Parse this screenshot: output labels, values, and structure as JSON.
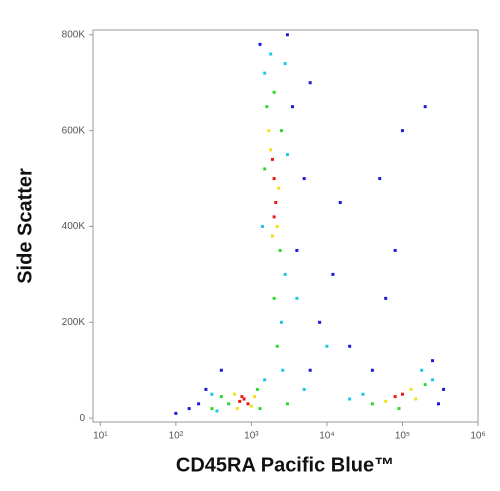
{
  "chart_data": {
    "type": "scatter",
    "x_label": "CD45RA Pacific Blue™",
    "y_label": "Side Scatter",
    "xscale": "log",
    "xlim": [
      8,
      1000000
    ],
    "ylim": [
      -8000,
      810000
    ],
    "xticks": [
      {
        "value": 10,
        "label": "10¹"
      },
      {
        "value": 100,
        "label": "10²"
      },
      {
        "value": 1000,
        "label": "10³"
      },
      {
        "value": 10000,
        "label": "10⁴"
      },
      {
        "value": 100000,
        "label": "10⁵"
      },
      {
        "value": 1000000,
        "label": "10⁶"
      }
    ],
    "yticks": [
      0,
      {
        "value": 200000,
        "label": "200K"
      },
      {
        "value": 400000,
        "label": "400K"
      },
      {
        "value": 600000,
        "label": "600K"
      },
      {
        "value": 800000,
        "label": "800K"
      }
    ],
    "series": [
      {
        "color": "#1a1adc",
        "x": [
          200,
          250,
          150,
          4000,
          5000,
          8000,
          12000,
          20000,
          60000,
          100000,
          200000,
          250000,
          40000,
          1300,
          3000,
          6000,
          15000,
          300000,
          350000,
          100,
          3500,
          50000,
          80000,
          400,
          6000
        ],
        "values": [
          30000,
          60000,
          20000,
          350000,
          500000,
          200000,
          300000,
          150000,
          250000,
          600000,
          650000,
          120000,
          100000,
          780000,
          800000,
          100000,
          450000,
          30000,
          60000,
          10000,
          650000,
          500000,
          350000,
          100000,
          700000
        ]
      },
      {
        "color": "#18c8e8",
        "x": [
          300,
          1500,
          350,
          2500,
          1500,
          2800,
          3000,
          1400,
          2600,
          5000,
          20000,
          10000,
          30000,
          250000,
          180000,
          1800,
          2800,
          4000
        ],
        "values": [
          50000,
          80000,
          15000,
          200000,
          720000,
          300000,
          550000,
          400000,
          100000,
          60000,
          40000,
          150000,
          50000,
          80000,
          100000,
          760000,
          740000,
          250000
        ]
      },
      {
        "color": "#2ed62e",
        "x": [
          500,
          1200,
          400,
          1300,
          1600,
          2400,
          1500,
          2500,
          2000,
          2000,
          2200,
          40000,
          200000,
          90000,
          300,
          3000
        ],
        "values": [
          30000,
          60000,
          45000,
          20000,
          650000,
          350000,
          520000,
          600000,
          680000,
          250000,
          150000,
          30000,
          70000,
          20000,
          20000,
          30000
        ]
      },
      {
        "color": "#f0e020",
        "x": [
          600,
          1000,
          650,
          1100,
          1800,
          2200,
          1900,
          2300,
          1700,
          60000,
          130000,
          150000
        ],
        "values": [
          50000,
          25000,
          20000,
          45000,
          560000,
          400000,
          380000,
          480000,
          600000,
          35000,
          60000,
          40000
        ]
      },
      {
        "color": "#e81c10",
        "x": [
          700,
          800,
          900,
          750,
          2000,
          2100,
          1900,
          2000,
          80000,
          100000
        ],
        "values": [
          35000,
          40000,
          30000,
          45000,
          500000,
          450000,
          540000,
          420000,
          45000,
          50000
        ]
      }
    ]
  }
}
